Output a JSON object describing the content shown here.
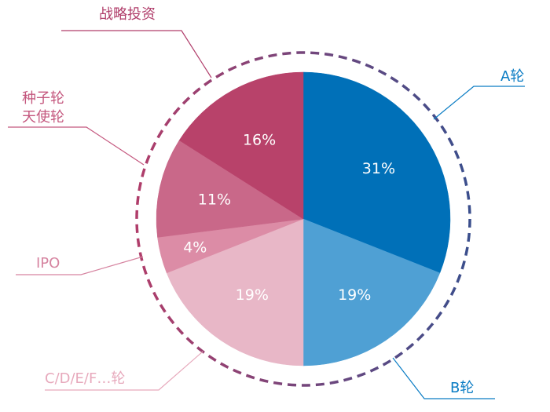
{
  "chart_data": {
    "type": "pie",
    "slices": [
      {
        "label": "A轮",
        "value": 31,
        "value_label": "31%",
        "color": "#0070b8"
      },
      {
        "label": "B轮",
        "value": 19,
        "value_label": "19%",
        "color": "#4fa0d4"
      },
      {
        "label": "C/D/E/F…轮",
        "value": 19,
        "value_label": "19%",
        "color": "#e8b7c7"
      },
      {
        "label": "IPO",
        "value": 4,
        "value_label": "4%",
        "color": "#dc8ca6"
      },
      {
        "label": "种子轮\n天使轮",
        "value": 11,
        "value_label": "11%",
        "color": "#c96889"
      },
      {
        "label": "战略投资",
        "value": 16,
        "value_label": "16%",
        "color": "#b8426a"
      }
    ],
    "ring_color_start": "#3a4e8c",
    "ring_color_end": "#b03d6a"
  }
}
